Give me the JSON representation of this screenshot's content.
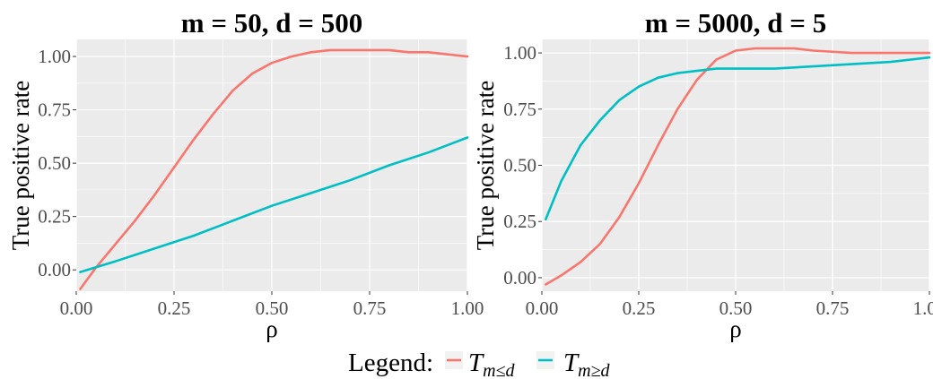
{
  "legend": {
    "title": "Legend:",
    "entries": [
      {
        "main": "T",
        "sub": "m≤d",
        "color": "#F8766D"
      },
      {
        "main": "T",
        "sub": "m≥d",
        "color": "#00BFC4"
      }
    ]
  },
  "chart_data": [
    {
      "type": "line",
      "title": "m = 50, d = 500",
      "xlabel": "ρ",
      "ylabel": "True positive rate",
      "xlim": [
        0,
        1
      ],
      "ylim": [
        -0.1,
        1.08
      ],
      "xticks": [
        0.0,
        0.25,
        0.5,
        0.75,
        1.0
      ],
      "xtick_labels": [
        "0.00",
        "0.25",
        "0.50",
        "0.75",
        "1.00"
      ],
      "yticks": [
        0.0,
        0.25,
        0.5,
        0.75,
        1.0
      ],
      "ytick_labels": [
        "0.00",
        "0.25",
        "0.50",
        "0.75",
        "1.00"
      ],
      "grid": true,
      "background": "#EBEBEB",
      "series": [
        {
          "name": "T m≤d",
          "color": "#F8766D",
          "x": [
            0.01,
            0.05,
            0.1,
            0.15,
            0.2,
            0.25,
            0.3,
            0.35,
            0.4,
            0.45,
            0.5,
            0.55,
            0.6,
            0.65,
            0.7,
            0.75,
            0.8,
            0.85,
            0.9,
            0.95,
            1.0
          ],
          "y": [
            -0.09,
            0.01,
            0.12,
            0.23,
            0.35,
            0.48,
            0.61,
            0.73,
            0.84,
            0.92,
            0.97,
            1.0,
            1.02,
            1.03,
            1.03,
            1.03,
            1.03,
            1.02,
            1.02,
            1.01,
            1.0
          ]
        },
        {
          "name": "T m≥d",
          "color": "#00BFC4",
          "x": [
            0.01,
            0.1,
            0.2,
            0.3,
            0.4,
            0.5,
            0.6,
            0.7,
            0.8,
            0.9,
            1.0
          ],
          "y": [
            -0.01,
            0.04,
            0.1,
            0.16,
            0.23,
            0.3,
            0.36,
            0.42,
            0.49,
            0.55,
            0.62
          ]
        }
      ]
    },
    {
      "type": "line",
      "title": "m = 5000, d = 5",
      "xlabel": "ρ",
      "ylabel": "True positive rate",
      "xlim": [
        0,
        1
      ],
      "ylim": [
        -0.06,
        1.06
      ],
      "xticks": [
        0.0,
        0.25,
        0.5,
        0.75,
        1.0
      ],
      "xtick_labels": [
        "0.00",
        "0.25",
        "0.50",
        "0.75",
        "1.00"
      ],
      "yticks": [
        0.0,
        0.25,
        0.5,
        0.75,
        1.0
      ],
      "ytick_labels": [
        "0.00",
        "0.25",
        "0.50",
        "0.75",
        "1.00"
      ],
      "grid": true,
      "background": "#EBEBEB",
      "series": [
        {
          "name": "T m≤d",
          "color": "#F8766D",
          "x": [
            0.01,
            0.05,
            0.1,
            0.15,
            0.2,
            0.25,
            0.3,
            0.35,
            0.4,
            0.45,
            0.5,
            0.55,
            0.6,
            0.65,
            0.7,
            0.8,
            0.9,
            1.0
          ],
          "y": [
            -0.03,
            0.01,
            0.07,
            0.15,
            0.27,
            0.42,
            0.59,
            0.75,
            0.88,
            0.97,
            1.01,
            1.02,
            1.02,
            1.02,
            1.01,
            1.0,
            1.0,
            1.0
          ],
          "y_fix": [
            -0.03,
            0.01,
            0.07,
            0.15,
            0.27,
            0.42,
            0.59,
            0.75,
            0.88,
            0.97,
            1.01,
            1.02,
            1.02,
            1.02,
            1.01,
            1.0,
            1.0,
            1.0
          ]
        },
        {
          "name": "T m≥d",
          "color": "#00BFC4",
          "x": [
            0.01,
            0.05,
            0.1,
            0.15,
            0.2,
            0.25,
            0.3,
            0.35,
            0.4,
            0.45,
            0.5,
            0.6,
            0.7,
            0.8,
            0.9,
            1.0
          ],
          "y": [
            0.26,
            0.43,
            0.59,
            0.7,
            0.79,
            0.85,
            0.89,
            0.91,
            0.92,
            0.93,
            0.93,
            0.93,
            0.94,
            0.95,
            0.96,
            0.98
          ]
        }
      ]
    }
  ]
}
